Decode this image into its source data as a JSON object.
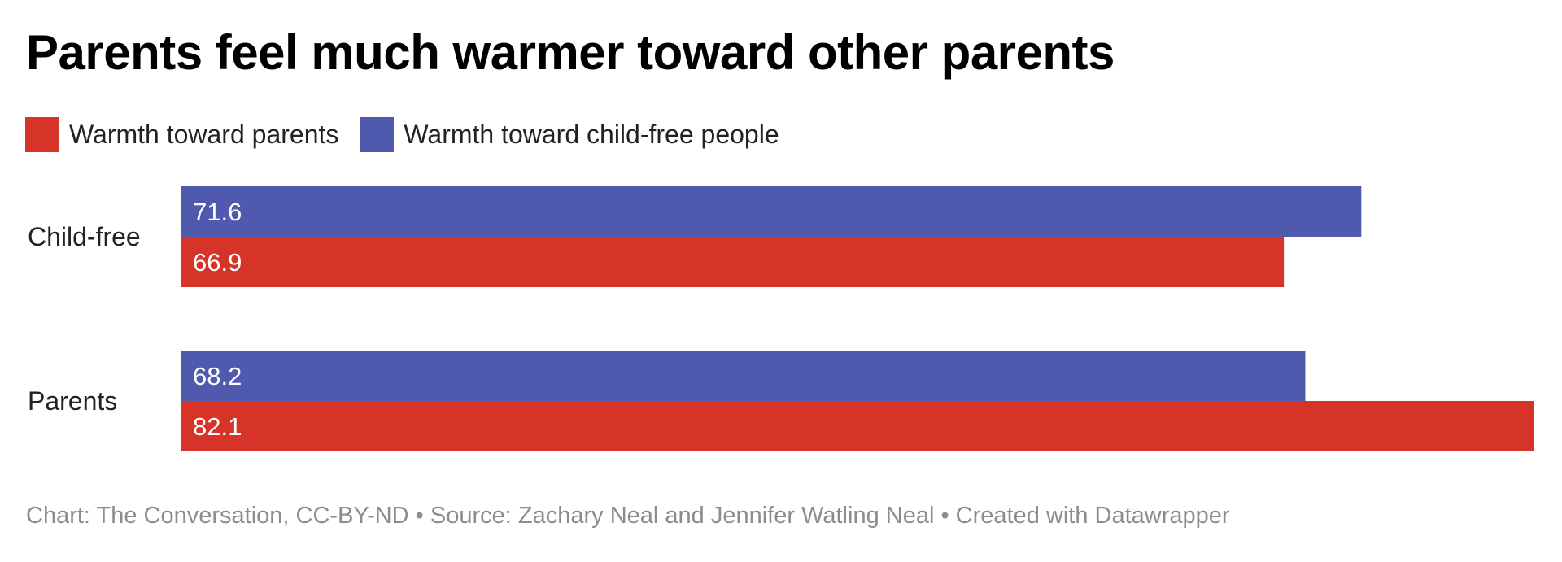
{
  "chart_data": {
    "type": "bar",
    "orientation": "horizontal",
    "title": "Parents feel much warmer toward other parents",
    "categories": [
      "Child-free",
      "Parents"
    ],
    "series": [
      {
        "name": "Warmth toward child-free people",
        "color": "#4f59ae",
        "values": [
          71.6,
          68.2
        ]
      },
      {
        "name": "Warmth toward parents",
        "color": "#d63329",
        "values": [
          66.9,
          82.1
        ]
      }
    ],
    "legend_order": [
      1,
      0
    ],
    "legend_placement": "top-left",
    "xlim": [
      0,
      82.1
    ],
    "grid": false,
    "data_labels": true
  },
  "footer": "Chart: The Conversation, CC-BY-ND • Source: Zachary Neal and Jennifer Watling Neal • Created with Datawrapper"
}
